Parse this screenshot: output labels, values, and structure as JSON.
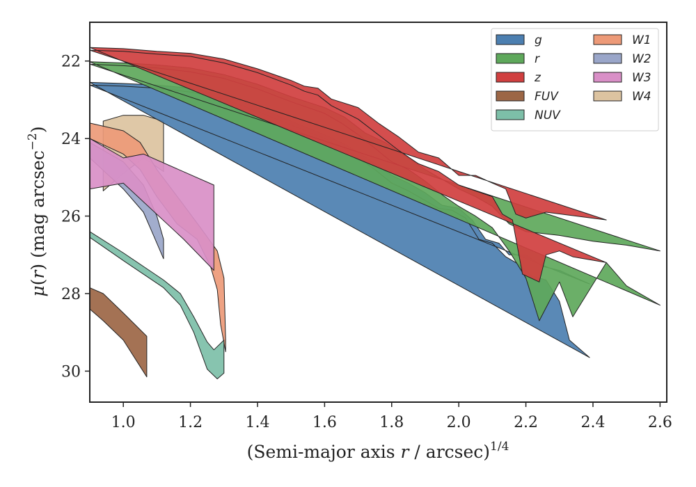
{
  "chart_data": {
    "type": "area",
    "title": "",
    "xlabel_main": "(Semi-major axis ",
    "xlabel_var": "r",
    "xlabel_unit": " / arcsec)",
    "xlabel_exp": "1/4",
    "ylabel_mu": "μ",
    "ylabel_open": "(",
    "ylabel_var": "r",
    "ylabel_close": ") (mag arcsec",
    "ylabel_exp": "−2",
    "ylabel_end": ")",
    "xlim": [
      0.9,
      2.62
    ],
    "ylim": [
      30.8,
      21.0
    ],
    "y_inverted": true,
    "grid": false,
    "legend_position": "top-right",
    "xticks": [
      1.0,
      1.2,
      1.4,
      1.6,
      1.8,
      2.0,
      2.2,
      2.4,
      2.6
    ],
    "xtick_labels": [
      "1.0",
      "1.2",
      "1.4",
      "1.6",
      "1.8",
      "2.0",
      "2.2",
      "2.4",
      "2.6"
    ],
    "yticks": [
      22,
      24,
      26,
      28,
      30
    ],
    "ytick_labels": [
      "22",
      "24",
      "26",
      "28",
      "30"
    ],
    "series": [
      {
        "name": "W4",
        "color": "#dcc3a0",
        "upper": [
          [
            0.94,
            23.55
          ],
          [
            1.0,
            23.4
          ],
          [
            1.06,
            23.4
          ],
          [
            1.12,
            23.55
          ]
        ],
        "lower": [
          [
            0.94,
            25.35
          ],
          [
            1.0,
            24.9
          ],
          [
            1.06,
            24.5
          ],
          [
            1.12,
            24.85
          ]
        ]
      },
      {
        "name": "W1",
        "color": "#ed9a78",
        "upper": [
          [
            0.9,
            23.6
          ],
          [
            1.0,
            23.8
          ],
          [
            1.05,
            24.1
          ],
          [
            1.1,
            24.8
          ],
          [
            1.17,
            25.6
          ],
          [
            1.23,
            26.3
          ],
          [
            1.28,
            26.9
          ],
          [
            1.3,
            27.6
          ],
          [
            1.305,
            29.2
          ]
        ],
        "lower": [
          [
            0.9,
            24.0
          ],
          [
            1.0,
            24.4
          ],
          [
            1.05,
            24.8
          ],
          [
            1.1,
            25.5
          ],
          [
            1.16,
            26.2
          ],
          [
            1.22,
            26.6
          ],
          [
            1.26,
            27.3
          ],
          [
            1.28,
            27.9
          ],
          [
            1.29,
            28.8
          ],
          [
            1.305,
            29.5
          ]
        ]
      },
      {
        "name": "W2",
        "color": "#9aa6c9",
        "upper": [
          [
            0.9,
            24.1
          ],
          [
            1.0,
            24.6
          ],
          [
            1.06,
            25.2
          ],
          [
            1.1,
            26.0
          ],
          [
            1.12,
            26.6
          ]
        ],
        "lower": [
          [
            0.9,
            24.5
          ],
          [
            1.0,
            25.3
          ],
          [
            1.06,
            25.9
          ],
          [
            1.09,
            26.5
          ],
          [
            1.12,
            27.1
          ]
        ]
      },
      {
        "name": "W3",
        "color": "#d98fc7",
        "upper": [
          [
            0.9,
            24.0
          ],
          [
            1.0,
            24.5
          ],
          [
            1.06,
            24.4
          ],
          [
            1.27,
            25.2
          ]
        ],
        "lower": [
          [
            0.9,
            25.3
          ],
          [
            1.0,
            25.15
          ],
          [
            1.18,
            26.6
          ],
          [
            1.27,
            27.4
          ]
        ]
      },
      {
        "name": "FUV",
        "color": "#9c6645",
        "upper": [
          [
            0.9,
            27.85
          ],
          [
            0.94,
            28.0
          ],
          [
            1.0,
            28.5
          ],
          [
            1.07,
            29.1
          ]
        ],
        "lower": [
          [
            0.9,
            28.4
          ],
          [
            0.94,
            28.7
          ],
          [
            1.0,
            29.2
          ],
          [
            1.07,
            30.15
          ]
        ]
      },
      {
        "name": "NUV",
        "color": "#7dbfa8",
        "upper": [
          [
            0.9,
            26.4
          ],
          [
            1.0,
            26.95
          ],
          [
            1.06,
            27.3
          ],
          [
            1.12,
            27.65
          ],
          [
            1.17,
            28.0
          ],
          [
            1.21,
            28.6
          ],
          [
            1.25,
            29.25
          ],
          [
            1.27,
            29.45
          ],
          [
            1.3,
            29.2
          ]
        ],
        "lower": [
          [
            0.9,
            26.55
          ],
          [
            1.0,
            27.15
          ],
          [
            1.06,
            27.5
          ],
          [
            1.12,
            27.85
          ],
          [
            1.17,
            28.3
          ],
          [
            1.21,
            29.0
          ],
          [
            1.25,
            29.95
          ],
          [
            1.28,
            30.2
          ],
          [
            1.3,
            30.05
          ]
        ]
      },
      {
        "name": "g",
        "color": "#4c7fb0",
        "upper": [
          [
            0.9,
            22.55
          ],
          [
            1.0,
            22.58
          ],
          [
            1.1,
            22.62
          ],
          [
            1.2,
            22.7
          ],
          [
            1.3,
            22.88
          ],
          [
            1.4,
            23.2
          ],
          [
            1.5,
            23.55
          ],
          [
            1.6,
            23.9
          ],
          [
            1.65,
            24.1
          ],
          [
            1.7,
            24.35
          ],
          [
            1.75,
            24.65
          ],
          [
            1.8,
            24.95
          ],
          [
            1.85,
            25.15
          ],
          [
            1.9,
            25.4
          ],
          [
            1.95,
            25.72
          ],
          [
            2.0,
            25.8
          ],
          [
            2.04,
            26.1
          ],
          [
            2.08,
            26.6
          ],
          [
            2.12,
            26.7
          ],
          [
            2.15,
            27.0
          ],
          [
            2.2,
            27.0
          ],
          [
            2.25,
            27.3
          ],
          [
            2.3,
            27.4
          ],
          [
            2.35,
            27.6
          ],
          [
            2.39,
            27.75
          ]
        ],
        "lower": [
          [
            2.39,
            29.65
          ],
          [
            2.33,
            29.2
          ],
          [
            2.3,
            28.2
          ],
          [
            2.26,
            27.65
          ],
          [
            2.22,
            27.55
          ],
          [
            2.18,
            27.25
          ],
          [
            2.14,
            27.05
          ],
          [
            2.1,
            26.7
          ],
          [
            2.06,
            26.6
          ],
          [
            2.02,
            26.05
          ],
          [
            1.98,
            25.85
          ],
          [
            1.94,
            25.8
          ],
          [
            1.9,
            25.6
          ],
          [
            1.85,
            25.35
          ],
          [
            1.8,
            25.15
          ],
          [
            1.75,
            24.8
          ],
          [
            1.7,
            24.5
          ],
          [
            1.65,
            24.2
          ],
          [
            1.6,
            24.0
          ],
          [
            1.5,
            23.65
          ],
          [
            1.4,
            23.3
          ],
          [
            1.3,
            22.98
          ],
          [
            1.2,
            22.8
          ],
          [
            1.1,
            22.7
          ],
          [
            1.0,
            22.65
          ],
          [
            0.9,
            22.62
          ]
        ]
      },
      {
        "name": "r",
        "color": "#5ea85b",
        "upper": [
          [
            0.9,
            22.02
          ],
          [
            1.0,
            22.05
          ],
          [
            1.1,
            22.1
          ],
          [
            1.2,
            22.18
          ],
          [
            1.3,
            22.35
          ],
          [
            1.4,
            22.6
          ],
          [
            1.5,
            22.92
          ],
          [
            1.6,
            23.2
          ],
          [
            1.66,
            23.45
          ],
          [
            1.72,
            23.85
          ],
          [
            1.78,
            24.1
          ],
          [
            1.85,
            24.5
          ],
          [
            1.9,
            24.8
          ],
          [
            1.95,
            25.05
          ],
          [
            2.0,
            25.3
          ],
          [
            2.05,
            25.5
          ],
          [
            2.1,
            25.75
          ],
          [
            2.15,
            26.2
          ],
          [
            2.2,
            26.4
          ],
          [
            2.3,
            26.5
          ],
          [
            2.4,
            26.65
          ],
          [
            2.5,
            26.75
          ],
          [
            2.6,
            26.9
          ]
        ],
        "lower": [
          [
            2.6,
            28.3
          ],
          [
            2.5,
            27.8
          ],
          [
            2.44,
            27.2
          ],
          [
            2.34,
            28.6
          ],
          [
            2.3,
            27.7
          ],
          [
            2.24,
            28.7
          ],
          [
            2.2,
            27.6
          ],
          [
            2.15,
            26.9
          ],
          [
            2.1,
            26.3
          ],
          [
            2.05,
            26.0
          ],
          [
            2.0,
            25.75
          ],
          [
            1.95,
            25.45
          ],
          [
            1.9,
            25.1
          ],
          [
            1.85,
            24.8
          ],
          [
            1.8,
            24.6
          ],
          [
            1.75,
            24.25
          ],
          [
            1.7,
            23.9
          ],
          [
            1.65,
            23.6
          ],
          [
            1.6,
            23.35
          ],
          [
            1.5,
            23.05
          ],
          [
            1.4,
            22.72
          ],
          [
            1.3,
            22.45
          ],
          [
            1.2,
            22.28
          ],
          [
            1.1,
            22.18
          ],
          [
            1.0,
            22.12
          ],
          [
            0.9,
            22.08
          ]
        ]
      },
      {
        "name": "z",
        "color": "#d03f3f",
        "upper": [
          [
            0.9,
            21.65
          ],
          [
            1.0,
            21.68
          ],
          [
            1.1,
            21.75
          ],
          [
            1.2,
            21.8
          ],
          [
            1.3,
            21.95
          ],
          [
            1.4,
            22.2
          ],
          [
            1.5,
            22.5
          ],
          [
            1.54,
            22.65
          ],
          [
            1.58,
            22.7
          ],
          [
            1.62,
            22.98
          ],
          [
            1.7,
            23.2
          ],
          [
            1.76,
            23.6
          ],
          [
            1.82,
            23.95
          ],
          [
            1.88,
            24.35
          ],
          [
            1.94,
            24.5
          ],
          [
            2.0,
            24.95
          ],
          [
            2.05,
            24.95
          ],
          [
            2.1,
            25.15
          ],
          [
            2.14,
            25.3
          ],
          [
            2.17,
            25.95
          ],
          [
            2.2,
            26.05
          ],
          [
            2.26,
            25.9
          ],
          [
            2.44,
            26.1
          ]
        ],
        "lower": [
          [
            2.44,
            27.2
          ],
          [
            2.34,
            27.05
          ],
          [
            2.3,
            26.9
          ],
          [
            2.26,
            27.0
          ],
          [
            2.24,
            27.7
          ],
          [
            2.19,
            27.5
          ],
          [
            2.16,
            26.1
          ],
          [
            2.13,
            25.95
          ],
          [
            2.1,
            25.5
          ],
          [
            2.05,
            25.35
          ],
          [
            2.0,
            25.2
          ],
          [
            1.94,
            24.85
          ],
          [
            1.88,
            24.65
          ],
          [
            1.82,
            24.3
          ],
          [
            1.76,
            23.9
          ],
          [
            1.7,
            23.5
          ],
          [
            1.62,
            23.15
          ],
          [
            1.58,
            22.88
          ],
          [
            1.54,
            22.78
          ],
          [
            1.5,
            22.62
          ],
          [
            1.4,
            22.3
          ],
          [
            1.3,
            22.05
          ],
          [
            1.2,
            21.88
          ],
          [
            1.1,
            21.82
          ],
          [
            1.0,
            21.75
          ],
          [
            0.9,
            21.72
          ]
        ]
      }
    ],
    "legend": [
      [
        "g",
        "r",
        "z",
        "FUV",
        "NUV"
      ],
      [
        "W1",
        "W2",
        "W3",
        "W4"
      ]
    ]
  }
}
